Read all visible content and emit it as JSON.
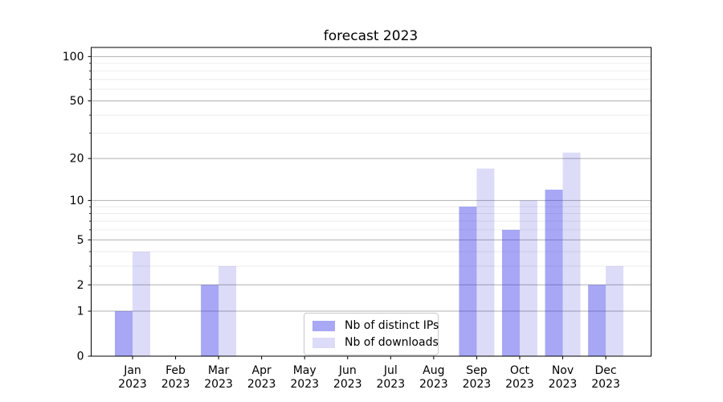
{
  "chart_data": {
    "type": "bar",
    "title": "forecast 2023",
    "categories": [
      "Jan",
      "Feb",
      "Mar",
      "Apr",
      "May",
      "Jun",
      "Jul",
      "Aug",
      "Sep",
      "Oct",
      "Nov",
      "Dec"
    ],
    "category_year_label": "2023",
    "series": [
      {
        "name": "Nb of distinct IPs",
        "color": "#a8a8f4",
        "fill_rgba": "rgba(45,45,230,0.42)",
        "values": [
          1,
          0,
          2,
          0,
          0,
          0,
          0,
          0,
          9,
          6,
          12,
          2
        ]
      },
      {
        "name": "Nb of downloads",
        "color": "#dcdcf9",
        "fill_rgba": "rgba(40,40,215,0.16)",
        "values": [
          4,
          0,
          3,
          0,
          0,
          0,
          0,
          0,
          17,
          10,
          22,
          3
        ]
      }
    ],
    "y_axis": {
      "scale": "log1p",
      "major_ticks": [
        0,
        1,
        2,
        5,
        10,
        20,
        50,
        100
      ],
      "minor_gridlines": [
        3,
        4,
        6,
        7,
        8,
        9,
        30,
        40,
        60,
        70,
        80,
        90
      ],
      "ylim": [
        0,
        117
      ]
    },
    "xlabel": "",
    "ylabel": "",
    "grid": true,
    "legend_position": "bottom-center-inside",
    "colors": {
      "major_grid": "#b0b0b0",
      "minor_grid": "#e8e8e8",
      "axis": "#000000",
      "text": "#000000",
      "background": "#ffffff"
    }
  }
}
